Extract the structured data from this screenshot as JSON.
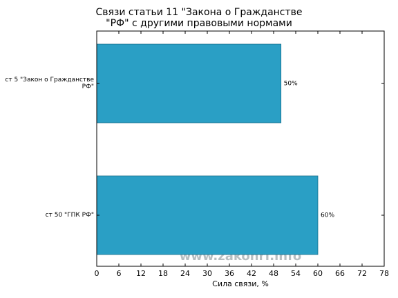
{
  "chart_data": {
    "type": "barh",
    "title": "Связи статьи 11 \"Закона о Гражданстве\n\"РФ\" с другими правовыми нормами",
    "categories": [
      "ст 5 \"Закон о Гражданстве\nРФ\"",
      "ст 50 \"ГПК РФ\""
    ],
    "values": [
      50,
      60
    ],
    "value_labels": [
      "50%",
      "60%"
    ],
    "color": "#2a9fc5",
    "xlabel": "Сила связи, %",
    "xlim": [
      0,
      78
    ],
    "xticks": [
      0,
      6,
      12,
      18,
      24,
      30,
      36,
      42,
      48,
      54,
      60,
      66,
      72,
      78
    ],
    "watermark": "www.zakonrf.info"
  }
}
